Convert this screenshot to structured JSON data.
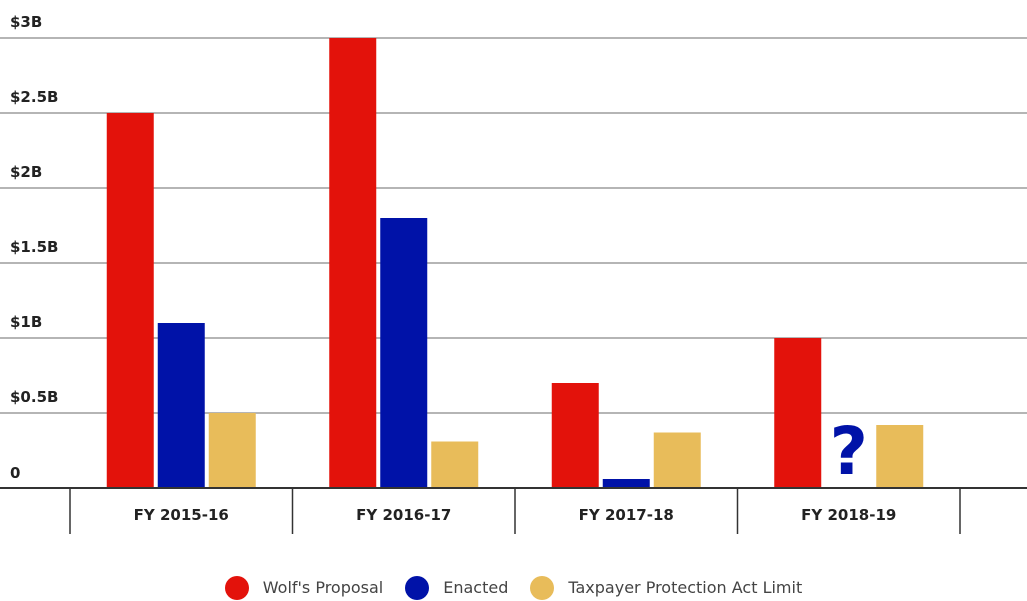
{
  "chart_data": {
    "type": "bar",
    "categories": [
      "FY 2015-16",
      "FY 2016-17",
      "FY 2017-18",
      "FY 2018-19"
    ],
    "series": [
      {
        "name": "Wolf's Proposal",
        "color": "#e3120b",
        "values": [
          2.5,
          3.0,
          0.7,
          1.0
        ]
      },
      {
        "name": "Enacted",
        "color": "#0012a8",
        "values": [
          1.1,
          1.8,
          0.06,
          null
        ]
      },
      {
        "name": "Taxpayer Protection Act Limit",
        "color": "#e8bc5a",
        "values": [
          0.5,
          0.31,
          0.37,
          0.42
        ]
      }
    ],
    "yticks": [
      {
        "value": 0,
        "label": "0"
      },
      {
        "value": 0.5,
        "label": "$0.5B"
      },
      {
        "value": 1,
        "label": "$1B"
      },
      {
        "value": 1.5,
        "label": "$1.5B"
      },
      {
        "value": 2,
        "label": "$2B"
      },
      {
        "value": 2.5,
        "label": "$2.5B"
      },
      {
        "value": 3,
        "label": "$3B"
      }
    ],
    "ylim": [
      0,
      3
    ],
    "grid": true,
    "legend_position": "bottom",
    "annotations": [
      {
        "text": "?",
        "category": "FY 2018-19",
        "series": "Enacted",
        "color": "#0012a8"
      }
    ]
  }
}
